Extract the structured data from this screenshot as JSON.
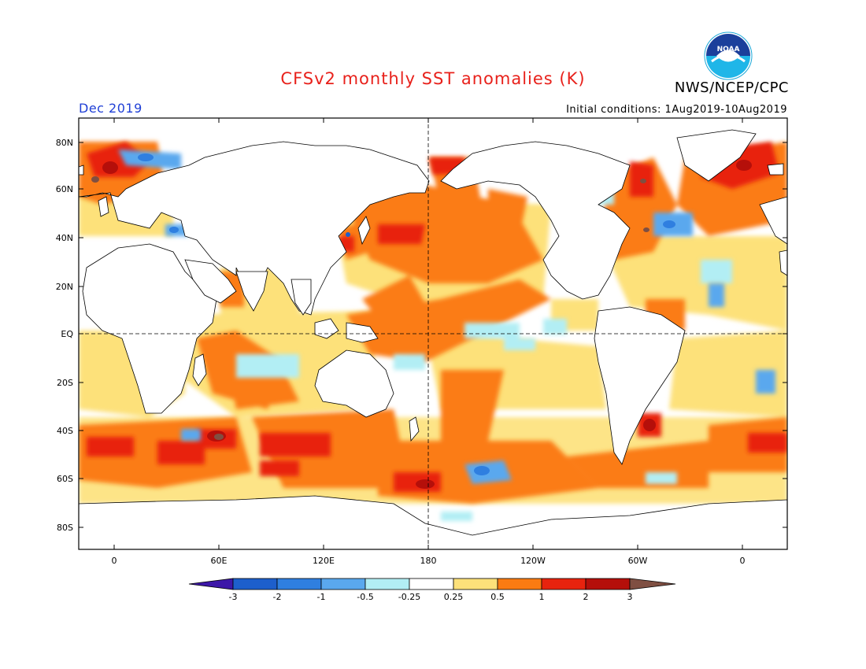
{
  "title": "CFSv2 monthly SST anomalies (K)",
  "agency": "NWS/NCEP/CPC",
  "logo_text": "NOAA",
  "valid_month": "Dec 2019",
  "initial_conditions": "Initial conditions: 1Aug2019-10Aug2019",
  "lat_ticks": [
    "80N",
    "60N",
    "40N",
    "20N",
    "EQ",
    "20S",
    "40S",
    "60S",
    "80S"
  ],
  "lon_ticks": [
    "0",
    "60E",
    "120E",
    "180",
    "120W",
    "60W",
    "0"
  ],
  "colorbar": {
    "levels": [
      "-3",
      "-2",
      "-1",
      "-0.5",
      "-0.25",
      "0.25",
      "0.5",
      "1",
      "2",
      "3"
    ],
    "colors": [
      "#3d17a8",
      "#1d5fcc",
      "#2f7fe0",
      "#5aa8ee",
      "#b2eef4",
      "#ffffff",
      "#fde17a",
      "#fb7b12",
      "#e8230e",
      "#b50f0a",
      "#7f4f42"
    ]
  }
}
